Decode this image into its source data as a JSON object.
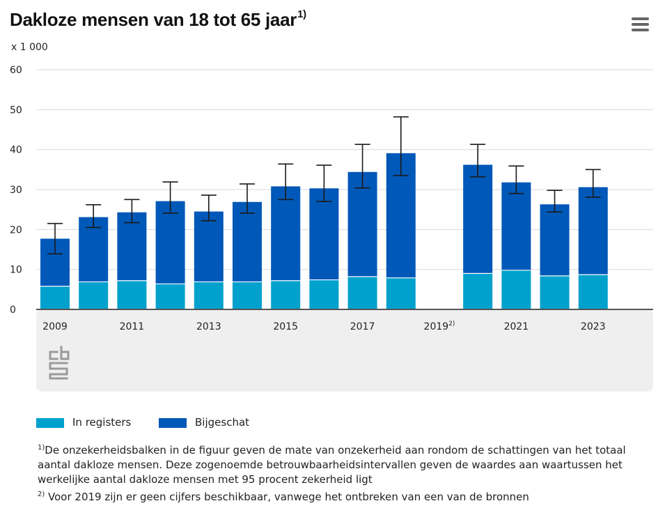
{
  "header": {
    "title": "Dakloze mensen van 18 tot 65 jaar",
    "title_sup": "1)",
    "unit_label": "x 1 000",
    "menu_icon": "hamburger-menu-icon"
  },
  "colors": {
    "registers": "#00a1cd",
    "estimated": "#0058b8",
    "grid": "#d9d9d9",
    "axis": "#555555",
    "plot_footer_bg": "#efefef",
    "logo": "#9a9a9a"
  },
  "legend": {
    "registers_label": "In registers",
    "estimated_label": "Bijgeschat"
  },
  "footnotes": {
    "note1_marker": "1)",
    "note1_text": "De onzekerheidsbalken in de figuur geven de mate van onzekerheid aan rondom de schattingen van het totaal aantal dakloze mensen. Deze zogenoemde betrouwbaarheidsintervallen geven de waardes aan waartussen het werkelijke aantal dakloze mensen met 95 procent zekerheid ligt",
    "note2_marker": "2)",
    "note2_text": " Voor 2019 zijn er geen cijfers beschikbaar, vanwege het ontbreken van een van de bronnen"
  },
  "chart_data": {
    "type": "bar",
    "stacked": true,
    "ylim": [
      0,
      60
    ],
    "yticks": [
      0,
      10,
      20,
      30,
      40,
      50,
      60
    ],
    "grid": true,
    "categories": [
      "2009",
      "2010",
      "2011",
      "2012",
      "2013",
      "2014",
      "2015",
      "2016",
      "2017",
      "2018",
      "2019",
      "2020",
      "2021",
      "2022",
      "2023"
    ],
    "x_tick_labels": [
      {
        "index": 0,
        "label": "2009"
      },
      {
        "index": 2,
        "label": "2011"
      },
      {
        "index": 4,
        "label": "2013"
      },
      {
        "index": 6,
        "label": "2015"
      },
      {
        "index": 8,
        "label": "2017"
      },
      {
        "index": 10,
        "label": "2019",
        "sup": "2)"
      },
      {
        "index": 12,
        "label": "2021"
      },
      {
        "index": 14,
        "label": "2023"
      }
    ],
    "series": [
      {
        "name": "In registers",
        "values": [
          5.8,
          6.9,
          7.2,
          6.4,
          6.9,
          6.9,
          7.2,
          7.4,
          8.2,
          7.9,
          null,
          9.0,
          9.8,
          8.4,
          8.7
        ]
      },
      {
        "name": "Bijgeschat",
        "values": [
          11.9,
          16.2,
          17.1,
          20.7,
          17.6,
          20.0,
          23.6,
          22.9,
          26.2,
          31.2,
          null,
          27.2,
          22.0,
          17.9,
          21.9
        ]
      }
    ],
    "totals": [
      17.7,
      23.1,
      24.3,
      27.1,
      24.5,
      26.9,
      30.8,
      30.3,
      34.4,
      39.1,
      null,
      36.2,
      31.8,
      26.3,
      30.6
    ],
    "error_low": [
      13.9,
      20.5,
      21.7,
      24.1,
      22.2,
      24.1,
      27.5,
      27.0,
      30.4,
      33.5,
      null,
      33.2,
      29.0,
      24.4,
      28.1
    ],
    "error_high": [
      21.5,
      26.2,
      27.5,
      31.9,
      28.6,
      31.4,
      36.4,
      36.1,
      41.3,
      48.2,
      null,
      41.3,
      35.9,
      29.8,
      35.0
    ]
  }
}
